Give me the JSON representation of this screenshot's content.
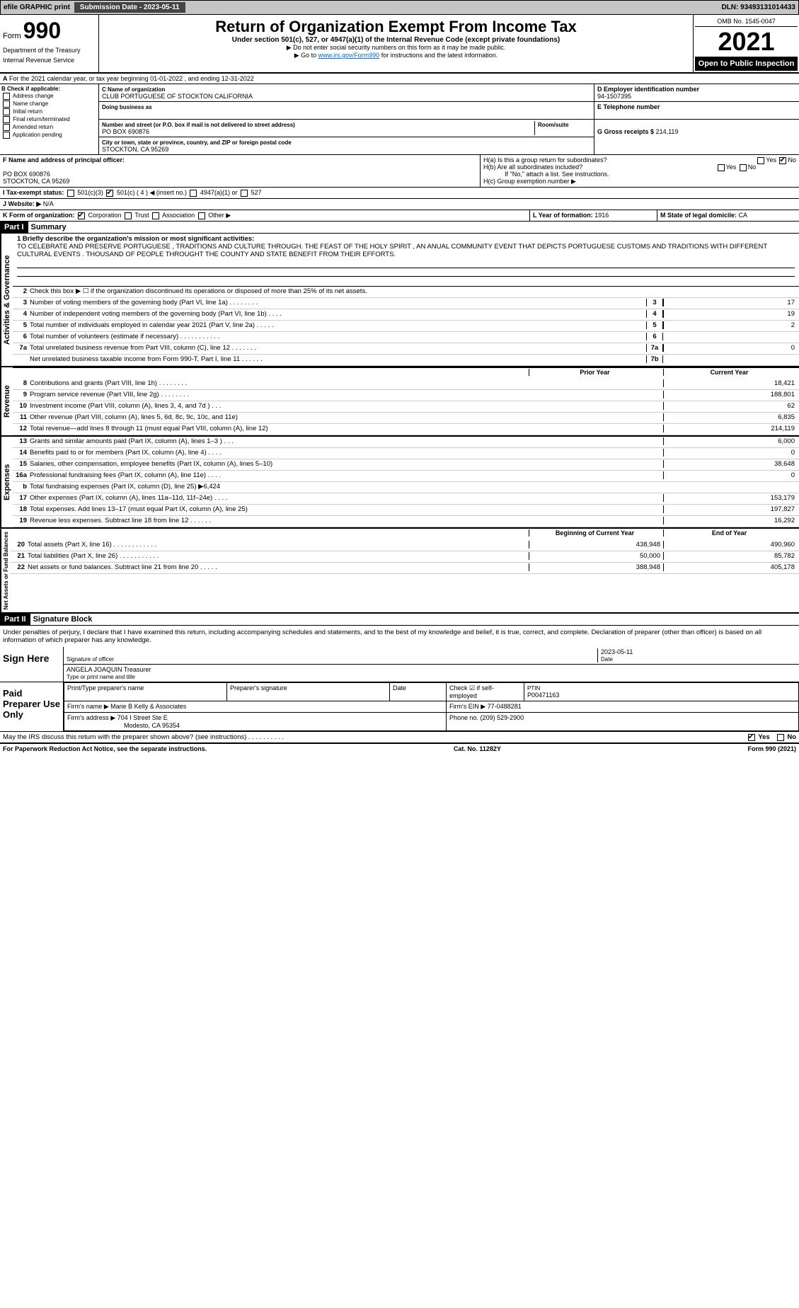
{
  "topbar": {
    "efile": "efile GRAPHIC print",
    "sub_label": "Submission Date - 2023-05-11",
    "dln": "DLN: 93493131014433"
  },
  "header": {
    "form": "Form",
    "formnum": "990",
    "dept": "Department of the Treasury",
    "irs": "Internal Revenue Service",
    "title": "Return of Organization Exempt From Income Tax",
    "sub1": "Under section 501(c), 527, or 4947(a)(1) of the Internal Revenue Code (except private foundations)",
    "sub2": "▶ Do not enter social security numbers on this form as it may be made public.",
    "sub3_pre": "▶ Go to ",
    "sub3_link": "www.irs.gov/Form990",
    "sub3_post": " for instructions and the latest information.",
    "omb": "OMB No. 1545-0047",
    "year": "2021",
    "inspect": "Open to Public Inspection"
  },
  "a_line": "For the 2021 calendar year, or tax year beginning 01-01-2022   , and ending 12-31-2022",
  "b": {
    "title": "B Check if applicable:",
    "items": [
      "Address change",
      "Name change",
      "Initial return",
      "Final return/terminated",
      "Amended return",
      "Application pending"
    ]
  },
  "c": {
    "name_lbl": "C Name of organization",
    "name": "CLUB PORTUGUESE OF STOCKTON CALIFORNIA",
    "dba_lbl": "Doing business as",
    "street_lbl": "Number and street (or P.O. box if mail is not delivered to street address)",
    "room_lbl": "Room/suite",
    "street": "PO BOX 690876",
    "city_lbl": "City or town, state or province, country, and ZIP or foreign postal code",
    "city": "STOCKTON, CA  95269"
  },
  "d": {
    "lbl": "D Employer identification number",
    "val": "94-1507395"
  },
  "e": {
    "lbl": "E Telephone number"
  },
  "g": {
    "lbl": "G Gross receipts $",
    "val": "214,119"
  },
  "f": {
    "lbl": "F  Name and address of principal officer:",
    "line1": "PO BOX 690876",
    "line2": "STOCKTON, CA  95269"
  },
  "h": {
    "a": "H(a)  Is this a group return for subordinates?",
    "b": "H(b)  Are all subordinates included?",
    "note": "If \"No,\" attach a list. See instructions.",
    "c": "H(c)  Group exemption number ▶",
    "yes": "Yes",
    "no": "No"
  },
  "i": {
    "lbl": "I   Tax-exempt status:",
    "opts": [
      "501(c)(3)",
      "501(c) ( 4 ) ◀ (insert no.)",
      "4947(a)(1) or",
      "527"
    ]
  },
  "j": {
    "lbl": "J   Website: ▶",
    "val": "N/A"
  },
  "k": {
    "lbl": "K Form of organization:",
    "opts": [
      "Corporation",
      "Trust",
      "Association",
      "Other ▶"
    ]
  },
  "l": {
    "lbl": "L Year of formation:",
    "val": "1916"
  },
  "m": {
    "lbl": "M State of legal domicile:",
    "val": "CA"
  },
  "part1": {
    "hdr": "Part I",
    "title": "Summary"
  },
  "mission": {
    "lbl": "1  Briefly describe the organization's mission or most significant activities:",
    "txt": "TO CELEBRATE AND PRESERVE PORTUGUESE , TRADITIONS AND CULTURE THROUGH. THE FEAST OF THE HOLY SPIRIT , AN ANUAL COMMUNITY EVENT THAT DEPICTS PORTUGUESE CUSTOMS AND TRADITIONS WITH DIFFERENT CULTURAL EVENTS . THOUSAND OF PEOPLE THROUGHT THE COUNTY AND STATE BENEFIT FROM THEIR EFFORTS."
  },
  "sides": {
    "gov": "Activities & Governance",
    "rev": "Revenue",
    "exp": "Expenses",
    "net": "Net Assets or Fund Balances"
  },
  "gov_lines": [
    {
      "n": "2",
      "t": "Check this box ▶ ☐  if the organization discontinued its operations or disposed of more than 25% of its net assets."
    },
    {
      "n": "3",
      "t": "Number of voting members of the governing body (Part VI, line 1a)   .    .    .    .    .    .    .    .",
      "c": "3",
      "v": "17"
    },
    {
      "n": "4",
      "t": "Number of independent voting members of the governing body (Part VI, line 1b)   .    .    .    .",
      "c": "4",
      "v": "19"
    },
    {
      "n": "5",
      "t": "Total number of individuals employed in calendar year 2021 (Part V, line 2a)   .    .    .    .    .",
      "c": "5",
      "v": "2"
    },
    {
      "n": "6",
      "t": "Total number of volunteers (estimate if necessary)    .    .    .    .    .    .    .    .    .    .    .",
      "c": "6",
      "v": ""
    },
    {
      "n": "7a",
      "t": "Total unrelated business revenue from Part VIII, column (C), line 12   .    .    .    .    .    .    .",
      "c": "7a",
      "v": "0"
    },
    {
      "n": "",
      "t": "Net unrelated business taxable income from Form 990-T, Part I, line 11   .    .    .    .    .    .",
      "c": "7b",
      "v": ""
    }
  ],
  "colheads": {
    "prior": "Prior Year",
    "curr": "Current Year"
  },
  "rev_lines": [
    {
      "n": "8",
      "t": "Contributions and grants (Part VIII, line 1h)   .    .    .    .    .    .    .    .",
      "p": "",
      "c": "18,421"
    },
    {
      "n": "9",
      "t": "Program service revenue (Part VIII, line 2g)    .    .    .    .    .    .    .    .",
      "p": "",
      "c": "188,801"
    },
    {
      "n": "10",
      "t": "Investment income (Part VIII, column (A), lines 3, 4, and 7d )    .    .    .",
      "p": "",
      "c": "62"
    },
    {
      "n": "11",
      "t": "Other revenue (Part VIII, column (A), lines 5, 6d, 8c, 9c, 10c, and 11e)",
      "p": "",
      "c": "6,835"
    },
    {
      "n": "12",
      "t": "Total revenue—add lines 8 through 11 (must equal Part VIII, column (A), line 12)",
      "p": "",
      "c": "214,119"
    }
  ],
  "exp_lines": [
    {
      "n": "13",
      "t": "Grants and similar amounts paid (Part IX, column (A), lines 1–3 )   .    .    .",
      "p": "",
      "c": "6,000"
    },
    {
      "n": "14",
      "t": "Benefits paid to or for members (Part IX, column (A), line 4)   .    .    .    .",
      "p": "",
      "c": "0"
    },
    {
      "n": "15",
      "t": "Salaries, other compensation, employee benefits (Part IX, column (A), lines 5–10)",
      "p": "",
      "c": "38,648"
    },
    {
      "n": "16a",
      "t": "Professional fundraising fees (Part IX, column (A), line 11e)   .    .    .    .",
      "p": "",
      "c": "0"
    },
    {
      "n": "b",
      "t": "Total fundraising expenses (Part IX, column (D), line 25) ▶6,424",
      "p": "shaded",
      "c": "shaded"
    },
    {
      "n": "17",
      "t": "Other expenses (Part IX, column (A), lines 11a–11d, 11f–24e)   .    .    .    .",
      "p": "",
      "c": "153,179"
    },
    {
      "n": "18",
      "t": "Total expenses. Add lines 13–17 (must equal Part IX, column (A), line 25)",
      "p": "",
      "c": "197,827"
    },
    {
      "n": "19",
      "t": "Revenue less expenses. Subtract line 18 from line 12   .    .    .    .    .    .",
      "p": "",
      "c": "16,292"
    }
  ],
  "net_heads": {
    "beg": "Beginning of Current Year",
    "end": "End of Year"
  },
  "net_lines": [
    {
      "n": "20",
      "t": "Total assets (Part X, line 16)   .    .    .    .    .    .    .    .    .    .    .    .",
      "p": "438,948",
      "c": "490,960"
    },
    {
      "n": "21",
      "t": "Total liabilities (Part X, line 26)   .    .    .    .    .    .    .    .    .    .    .",
      "p": "50,000",
      "c": "85,782"
    },
    {
      "n": "22",
      "t": "Net assets or fund balances. Subtract line 21 from line 20   .    .    .    .    .",
      "p": "388,948",
      "c": "405,178"
    }
  ],
  "part2": {
    "hdr": "Part II",
    "title": "Signature Block"
  },
  "penalty": "Under penalties of perjury, I declare that I have examined this return, including accompanying schedules and statements, and to the best of my knowledge and belief, it is true, correct, and complete. Declaration of preparer (other than officer) is based on all information of which preparer has any knowledge.",
  "sign": {
    "here": "Sign Here",
    "sig_lbl": "Signature of officer",
    "date_lbl": "Date",
    "date": "2023-05-11",
    "name": "ANGELA JOAQUIN  Treasurer",
    "name_lbl": "Type or print name and title"
  },
  "paid": {
    "hdr": "Paid Preparer Use Only",
    "cols": [
      "Print/Type preparer's name",
      "Preparer's signature",
      "Date",
      "Check ☑ if self-employed",
      "PTIN"
    ],
    "ptin": "P00471163",
    "firm_lbl": "Firm's name    ▶",
    "firm": "Marie B Kelly & Associates",
    "ein_lbl": "Firm's EIN ▶",
    "ein": "77-0488281",
    "addr_lbl": "Firm's address ▶",
    "addr1": "704 I Street Ste E",
    "addr2": "Modesto, CA  95354",
    "phone_lbl": "Phone no.",
    "phone": "(209) 529-2900"
  },
  "discuss": "May the IRS discuss this return with the preparer shown above? (see instructions)    .    .    .    .    .    .    .    .    .    .",
  "footer": {
    "left": "For Paperwork Reduction Act Notice, see the separate instructions.",
    "mid": "Cat. No. 11282Y",
    "right": "Form 990 (2021)"
  }
}
